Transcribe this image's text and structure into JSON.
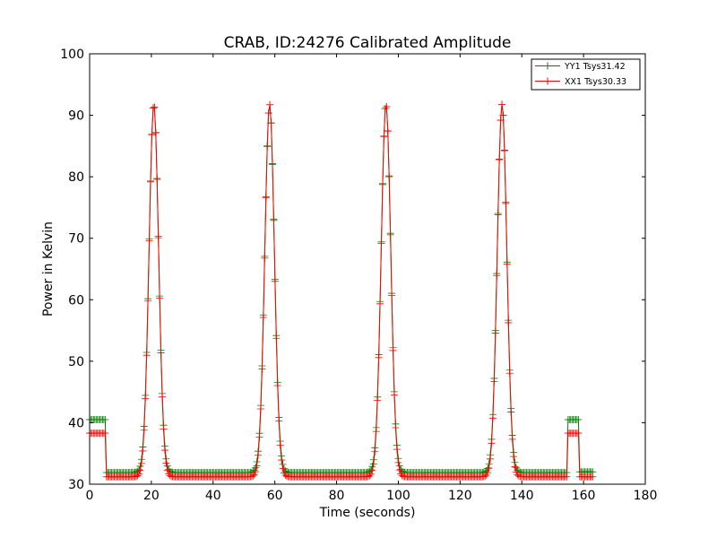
{
  "chart_data": {
    "type": "line",
    "title": "CRAB, ID:24276 Calibrated Amplitude",
    "xlabel": "Time (seconds)",
    "ylabel": "Power in Kelvin",
    "xlim": [
      0,
      180
    ],
    "ylim": [
      30,
      100
    ],
    "xticks": [
      "0",
      "20",
      "40",
      "60",
      "80",
      "100",
      "120",
      "140",
      "160",
      "180"
    ],
    "yticks": [
      "30",
      "40",
      "50",
      "60",
      "70",
      "80",
      "90",
      "100"
    ],
    "grid": false,
    "legend_position": "top-right",
    "peaks": [
      20.8,
      58.3,
      96.0,
      133.6
    ],
    "peak_max": 91.8,
    "series": [
      {
        "name": "YY1 Tsys31.42",
        "color": "#008000",
        "marker": "+",
        "levels": {
          "pre_start": 40.5,
          "baseline": 31.9,
          "post_bump": 40.5,
          "end": 32.0
        }
      },
      {
        "name": "XX1 Tsys30.33",
        "color": "#ff0000",
        "marker": "+",
        "levels": {
          "pre_start": 38.3,
          "baseline": 31.2,
          "post_bump": 38.3,
          "end": 31.2
        }
      }
    ],
    "time_range": [
      0,
      163
    ],
    "segments": {
      "step_down_at": 5.2,
      "bump_start": 154.8,
      "bump_end": 158.6
    }
  }
}
